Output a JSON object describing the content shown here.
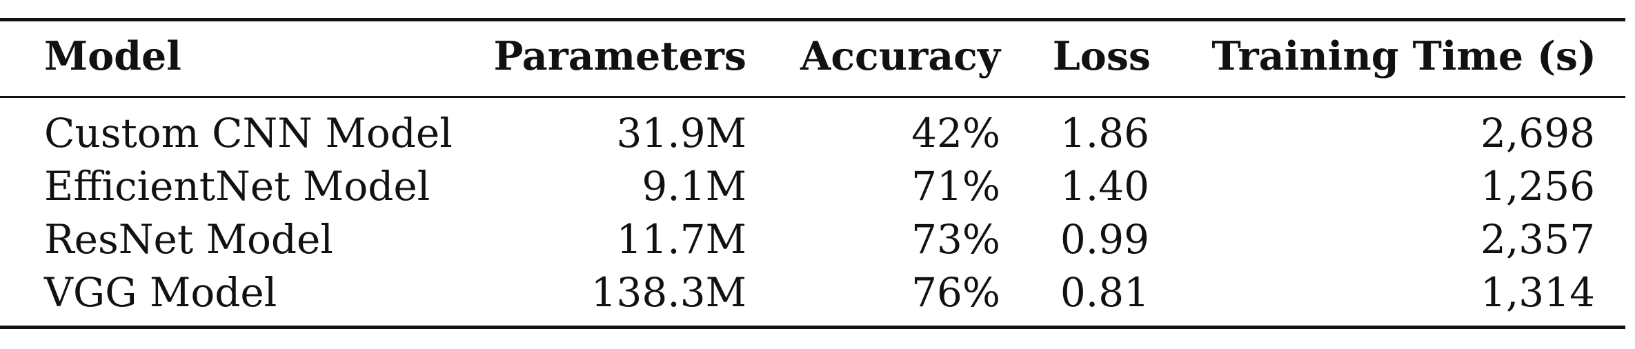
{
  "table": {
    "headers": [
      "Model",
      "Parameters",
      "Accuracy",
      "Loss",
      "Training Time (s)"
    ],
    "rows": [
      [
        "Custom CNN Model",
        "31.9M",
        "42%",
        "1.86",
        "2,698"
      ],
      [
        "EfficientNet Model",
        "9.1M",
        "71%",
        "1.40",
        "1,256"
      ],
      [
        "ResNet Model",
        "11.7M",
        "73%",
        "0.99",
        "2,357"
      ],
      [
        "VGG Model",
        "138.3M",
        "76%",
        "0.81",
        "1,314"
      ]
    ]
  }
}
